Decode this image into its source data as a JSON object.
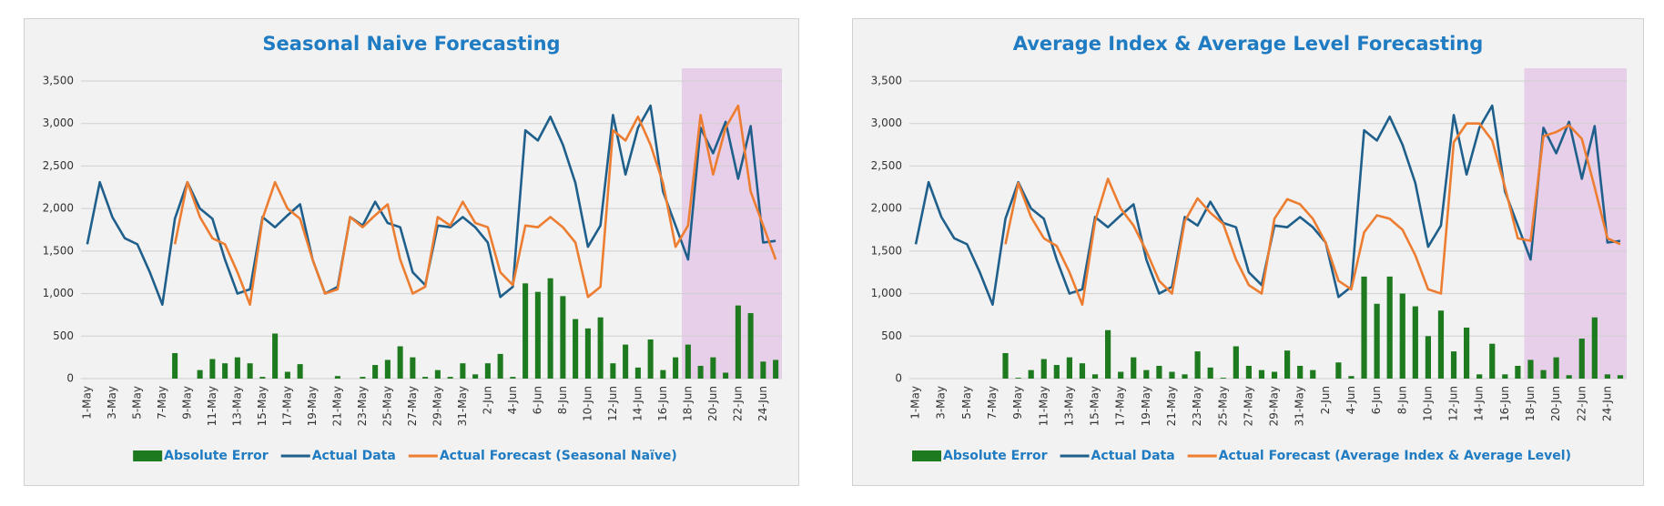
{
  "chart_data": [
    {
      "type": "bar",
      "title": "Seasonal Naive Forecasting",
      "categories": [
        "1-May",
        null,
        "3-May",
        null,
        "5-May",
        null,
        "7-May",
        null,
        "9-May",
        null,
        "11-May",
        null,
        "13-May",
        null,
        "15-May",
        null,
        "17-May",
        null,
        "19-May",
        null,
        "21-May",
        null,
        "23-May",
        null,
        "25-May",
        null,
        "27-May",
        null,
        "29-May",
        null,
        "31-May",
        null,
        "2-Jun",
        null,
        "4-Jun",
        null,
        "6-Jun",
        null,
        "8-Jun",
        null,
        "10-Jun",
        null,
        "12-Jun",
        null,
        "14-Jun",
        null,
        "16-Jun",
        null,
        "18-Jun",
        null,
        "20-Jun",
        null,
        "22-Jun",
        null,
        "24-Jun",
        null
      ],
      "series": [
        {
          "name": "Absolute Error",
          "type": "bar",
          "color": "#1e7a1e",
          "values": [
            null,
            null,
            null,
            null,
            null,
            null,
            null,
            300,
            0,
            100,
            230,
            180,
            250,
            180,
            20,
            530,
            80,
            170,
            0,
            0,
            30,
            0,
            20,
            160,
            220,
            380,
            250,
            20,
            100,
            20,
            180,
            50,
            180,
            290,
            20,
            1120,
            1020,
            1180,
            970,
            700,
            590,
            720,
            180,
            400,
            130,
            460,
            100,
            250,
            400,
            150,
            250,
            70,
            860,
            770,
            200,
            220
          ]
        },
        {
          "name": "Actual Data",
          "type": "line",
          "color": "#1f5f8b",
          "values": [
            1580,
            2310,
            1900,
            1650,
            1580,
            1250,
            870,
            1880,
            2310,
            2000,
            1880,
            1400,
            1000,
            1050,
            1900,
            1780,
            1920,
            2050,
            1400,
            1000,
            1080,
            1900,
            1800,
            2080,
            1830,
            1780,
            1250,
            1100,
            1800,
            1780,
            1900,
            1780,
            1600,
            960,
            1080,
            2920,
            2800,
            3080,
            2750,
            2300,
            1550,
            1800,
            3100,
            2400,
            2950,
            3210,
            2200,
            1800,
            1400,
            2950,
            2650,
            3020,
            2350,
            2970,
            1600,
            1620
          ]
        },
        {
          "name": "Actual Forecast (Seasonal Naïve)",
          "type": "line",
          "color": "#ed7d31",
          "values": [
            null,
            null,
            null,
            null,
            null,
            null,
            null,
            1580,
            2310,
            1900,
            1650,
            1580,
            1250,
            870,
            1880,
            2310,
            2000,
            1880,
            1400,
            1000,
            1050,
            1900,
            1780,
            1920,
            2050,
            1400,
            1000,
            1080,
            1900,
            1800,
            2080,
            1830,
            1780,
            1250,
            1100,
            1800,
            1780,
            1900,
            1780,
            1600,
            960,
            1080,
            2920,
            2800,
            3080,
            2750,
            2300,
            1550,
            1800,
            3100,
            2400,
            2950,
            3210,
            2200,
            1800,
            1400
          ]
        }
      ],
      "ylim": [
        0,
        3500
      ],
      "yticks": [
        0,
        500,
        {
          "value": 1000,
          "label": "1,000"
        },
        {
          "value": 1500,
          "label": "1,500"
        },
        {
          "value": 2000,
          "label": "2,000"
        },
        {
          "value": 2500,
          "label": "2,500"
        },
        {
          "value": 3000,
          "label": "3,000"
        },
        {
          "value": 3500,
          "label": "3,500"
        }
      ],
      "grid": true,
      "legend": "bottom"
    },
    {
      "type": "bar",
      "title": "Average Index & Average Level Forecasting",
      "categories": [
        "1-May",
        null,
        "3-May",
        null,
        "5-May",
        null,
        "7-May",
        null,
        "9-May",
        null,
        "11-May",
        null,
        "13-May",
        null,
        "15-May",
        null,
        "17-May",
        null,
        "19-May",
        null,
        "21-May",
        null,
        "23-May",
        null,
        "25-May",
        null,
        "27-May",
        null,
        "29-May",
        null,
        "31-May",
        null,
        "2-Jun",
        null,
        "4-Jun",
        null,
        "6-Jun",
        null,
        "8-Jun",
        null,
        "10-Jun",
        null,
        "12-Jun",
        null,
        "14-Jun",
        null,
        "16-Jun",
        null,
        "18-Jun",
        null,
        "20-Jun",
        null,
        "22-Jun",
        null,
        "24-Jun",
        null
      ],
      "series": [
        {
          "name": "Absolute Error",
          "type": "bar",
          "color": "#1e7a1e",
          "values": [
            null,
            null,
            null,
            null,
            null,
            null,
            null,
            300,
            10,
            100,
            230,
            160,
            250,
            180,
            50,
            570,
            80,
            250,
            100,
            150,
            80,
            50,
            320,
            130,
            10,
            380,
            150,
            100,
            80,
            330,
            150,
            100,
            0,
            190,
            30,
            1200,
            880,
            1200,
            1000,
            850,
            500,
            800,
            320,
            600,
            50,
            410,
            50,
            150,
            220,
            100,
            250,
            40,
            470,
            720,
            50,
            40
          ]
        },
        {
          "name": "Actual Data",
          "type": "line",
          "color": "#1f5f8b",
          "values": [
            1580,
            2310,
            1900,
            1650,
            1580,
            1250,
            870,
            1880,
            2310,
            2000,
            1880,
            1400,
            1000,
            1050,
            1900,
            1780,
            1920,
            2050,
            1400,
            1000,
            1080,
            1900,
            1800,
            2080,
            1830,
            1780,
            1250,
            1100,
            1800,
            1780,
            1900,
            1780,
            1600,
            960,
            1080,
            2920,
            2800,
            3080,
            2750,
            2300,
            1550,
            1800,
            3100,
            2400,
            2950,
            3210,
            2200,
            1800,
            1400,
            2950,
            2650,
            3020,
            2350,
            2970,
            1600,
            1620
          ]
        },
        {
          "name": "Actual Forecast (Average Index & Average Level)",
          "type": "line",
          "color": "#ed7d31",
          "values": [
            null,
            null,
            null,
            null,
            null,
            null,
            null,
            1580,
            2300,
            1900,
            1650,
            1560,
            1250,
            870,
            1850,
            2350,
            2000,
            1800,
            1500,
            1150,
            1000,
            1850,
            2120,
            1950,
            1820,
            1400,
            1100,
            1000,
            1880,
            2110,
            2050,
            1880,
            1600,
            1150,
            1050,
            1720,
            1920,
            1880,
            1750,
            1450,
            1050,
            1000,
            2780,
            3000,
            3000,
            2800,
            2250,
            1650,
            1620,
            2850,
            2900,
            2980,
            2820,
            2250,
            1650,
            1580
          ]
        }
      ],
      "ylim": [
        0,
        3500
      ],
      "yticks": [
        0,
        500,
        {
          "value": 1000,
          "label": "1,000"
        },
        {
          "value": 1500,
          "label": "1,500"
        },
        {
          "value": 2000,
          "label": "2,000"
        },
        {
          "value": 2500,
          "label": "2,500"
        },
        {
          "value": 3000,
          "label": "3,000"
        },
        {
          "value": 3500,
          "label": "3,500"
        }
      ],
      "grid": true,
      "legend": "bottom"
    }
  ]
}
